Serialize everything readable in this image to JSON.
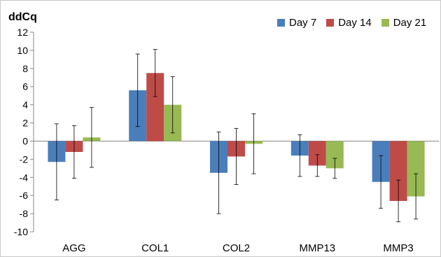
{
  "chart_data": {
    "type": "bar",
    "ylabel": "ddCq",
    "ylim": [
      -10,
      12
    ],
    "yticks": [
      12,
      10,
      8,
      6,
      4,
      2,
      0,
      -2,
      -4,
      -6,
      -8,
      -10
    ],
    "categories": [
      "AGG",
      "COL1",
      "COL2",
      "MMP13",
      "MMP3"
    ],
    "legend_position": "top-right",
    "grid": false,
    "series": [
      {
        "name": "Day 7",
        "color": "#4a7ebb",
        "values": [
          -2.3,
          5.6,
          -3.5,
          -1.6,
          -4.5
        ],
        "error": [
          4.2,
          4.0,
          4.5,
          2.3,
          2.9
        ]
      },
      {
        "name": "Day 14",
        "color": "#be4b48",
        "values": [
          -1.2,
          7.5,
          -1.7,
          -2.7,
          -6.6
        ],
        "error": [
          2.9,
          2.6,
          3.1,
          1.2,
          2.3
        ]
      },
      {
        "name": "Day 21",
        "color": "#98b954",
        "values": [
          0.4,
          4.0,
          -0.3,
          -3.0,
          -6.1
        ],
        "error": [
          3.3,
          3.1,
          3.3,
          1.1,
          2.5
        ]
      }
    ]
  }
}
